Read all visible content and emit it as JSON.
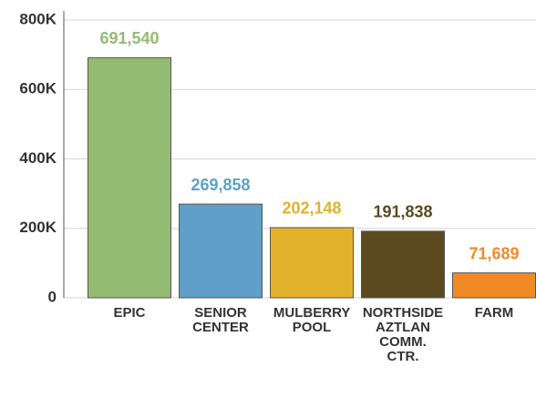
{
  "chart_data": {
    "type": "bar",
    "categories": [
      "EPIC",
      "SENIOR CENTER",
      "MULBERRY POOL",
      "NORTHSIDE AZTLAN COMM. CTR.",
      "FARM"
    ],
    "values": [
      691540,
      269858,
      202148,
      191838,
      71689
    ],
    "value_labels": [
      "691,540",
      "269,858",
      "202,148",
      "191,838",
      "71,689"
    ],
    "colors": [
      "#94bb72",
      "#5f9fc8",
      "#e2b12b",
      "#5b4a1e",
      "#f08a24"
    ],
    "ylim": [
      0,
      800000
    ],
    "yticks": [
      0,
      {
        "value": 200000,
        "label": "200K"
      },
      {
        "value": 400000,
        "label": "400K"
      },
      {
        "value": 600000,
        "label": "600K"
      },
      {
        "value": 800000,
        "label": "800K"
      }
    ],
    "grid": true
  }
}
